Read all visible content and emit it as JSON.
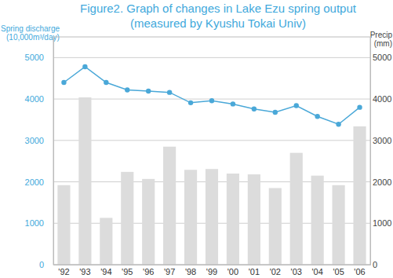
{
  "chart_data": {
    "type": "bar",
    "title": "Figure2. Graph of changes in Lake Ezu spring output",
    "subtitle": "(measured by Kyushu Tokai Univ)",
    "y_label": [
      "Spring discharge",
      "(10,000m³/day)"
    ],
    "y2_label": [
      "Precip",
      "(mm)"
    ],
    "categories": [
      "'92",
      "'93",
      "'94",
      "'95",
      "'96",
      "'97",
      "'98",
      "'99",
      "'00",
      "'01",
      "'02",
      "'03",
      "'04",
      "'05",
      "'06"
    ],
    "series": [
      {
        "type": "line",
        "color": "#4aa8d8",
        "marker": "circle",
        "values": [
          4400,
          4780,
          4400,
          4220,
          4190,
          4160,
          3910,
          3960,
          3880,
          3760,
          3680,
          3840,
          3580,
          3390,
          3800
        ]
      },
      {
        "type": "bar",
        "color": "#dcdcdc",
        "axis": "y2",
        "values": [
          1920,
          4040,
          1130,
          2240,
          2070,
          2850,
          2290,
          2310,
          2200,
          2180,
          1850,
          2700,
          2150,
          1920,
          3340
        ]
      }
    ],
    "ylim": [
      0,
      5500
    ],
    "yticks": [
      0,
      1000,
      2000,
      3000,
      4000,
      5000
    ],
    "y2lim": [
      0,
      5500
    ],
    "y2ticks": [
      0,
      1000,
      2000,
      3000,
      4000,
      5000
    ],
    "grid": true
  }
}
